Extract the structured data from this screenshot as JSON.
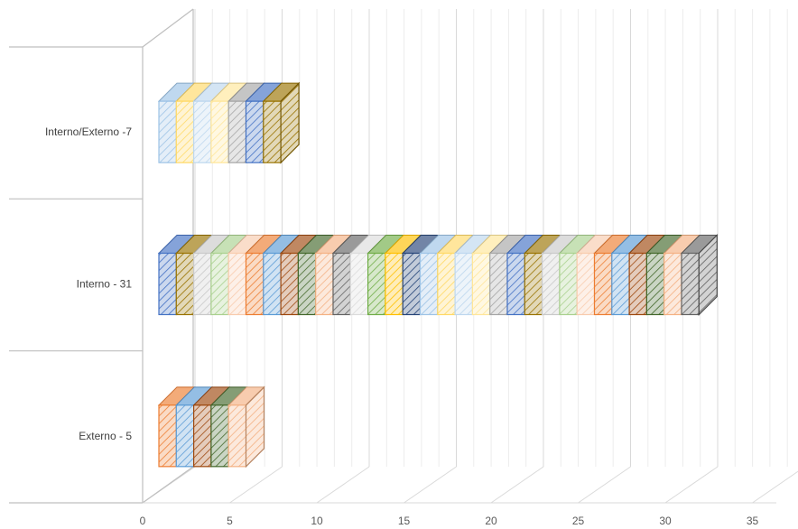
{
  "chart_data": {
    "type": "bar",
    "orientation": "horizontal",
    "style": "3d-stacked",
    "title": "",
    "xlabel": "",
    "ylabel": "",
    "xlim": [
      0,
      35
    ],
    "x_ticks": [
      0,
      5,
      10,
      15,
      20,
      25,
      30,
      35
    ],
    "grid": true,
    "legend": "none",
    "categories": [
      "Externo - 5",
      "Interno - 31",
      "Interno/Externo -7"
    ],
    "values": [
      5,
      31,
      7
    ],
    "segment_colors": [
      "#ED7D31",
      "#70AD47",
      "#A5A5A5",
      "#5B9BD5",
      "#FFC000",
      "#4472C4",
      "#9E480E",
      "#264478",
      "#997300",
      "#43682B",
      "#9DC3E6",
      "#C9C9C9",
      "#F4B183",
      "#FFD966",
      "#A9D18E",
      "#636363",
      "#BDD7EE",
      "#F8CBAD",
      "#DBDBDB",
      "#FFE699"
    ]
  }
}
